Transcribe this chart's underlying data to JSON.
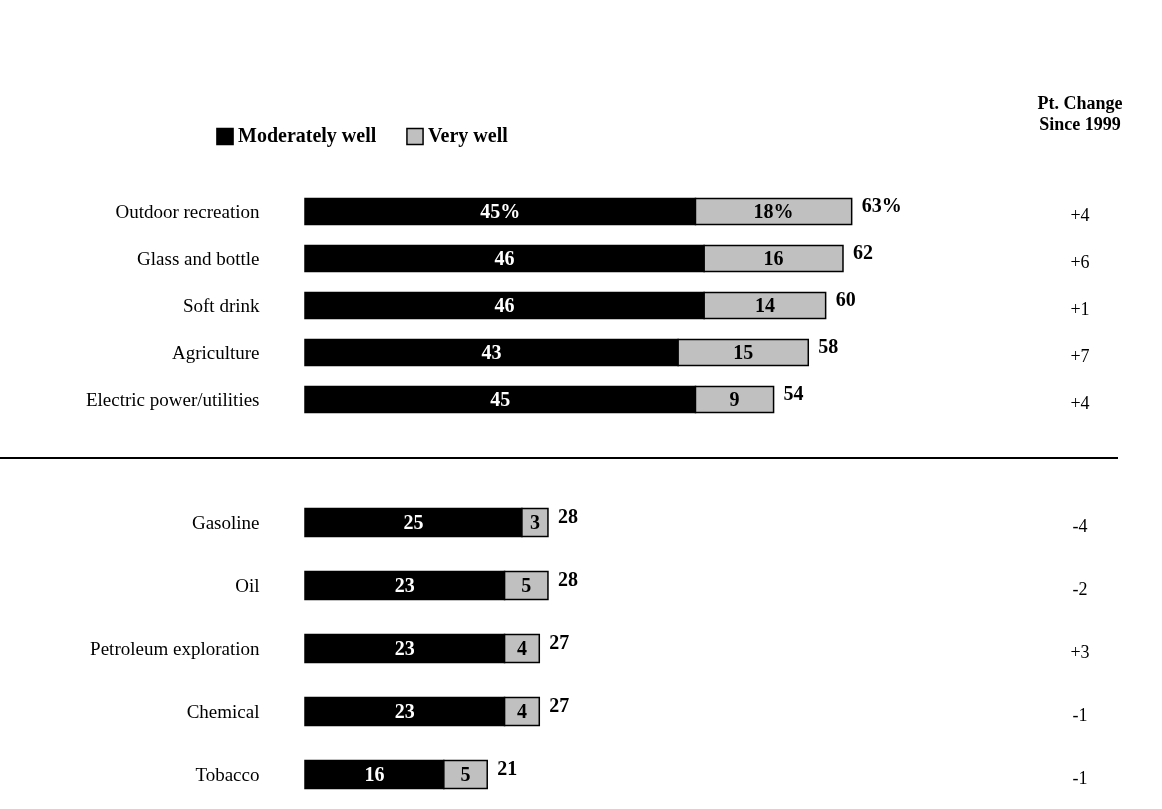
{
  "chart_data": [
    {
      "type": "bar",
      "orientation": "horizontal",
      "stacked": true,
      "legend": "top",
      "categories": [
        "Outdoor recreation",
        "Glass and bottle",
        "Soft drink",
        "Agriculture",
        "Electric power/utilities"
      ],
      "series": [
        {
          "name": "Moderately well",
          "color": "#000000",
          "values": [
            45,
            46,
            46,
            43,
            45
          ],
          "value_labels": [
            "45%",
            "46",
            "46",
            "43",
            "45"
          ]
        },
        {
          "name": "Very well",
          "color": "#c0c0c0",
          "values": [
            18,
            16,
            14,
            15,
            9
          ],
          "value_labels": [
            "18%",
            "16",
            "14",
            "15",
            "9"
          ]
        }
      ],
      "totals": [
        "63%",
        "62",
        "60",
        "58",
        "54"
      ],
      "annotations": [
        "Pt. Change",
        "Since 1999",
        "+4",
        "+6",
        "+1",
        "+7",
        "+4"
      ]
    },
    {
      "type": "bar",
      "orientation": "horizontal",
      "stacked": true,
      "categories": [
        "Gasoline",
        "Oil",
        "Petroleum exploration",
        "Chemical",
        "Tobacco"
      ],
      "series": [
        {
          "color": "#000000",
          "values": [
            25,
            23,
            23,
            23,
            16
          ],
          "value_labels": [
            "25",
            "23",
            "23",
            "23",
            "16"
          ]
        },
        {
          "color": "#c0c0c0",
          "values": [
            3,
            5,
            4,
            4,
            5
          ],
          "value_labels": [
            "3",
            "5",
            "4",
            "4",
            "5"
          ]
        }
      ],
      "totals": [
        "28",
        "28",
        "27",
        "27",
        "21"
      ],
      "annotations": [
        "-4",
        "-2",
        "+3",
        "-1",
        "-1"
      ]
    }
  ]
}
